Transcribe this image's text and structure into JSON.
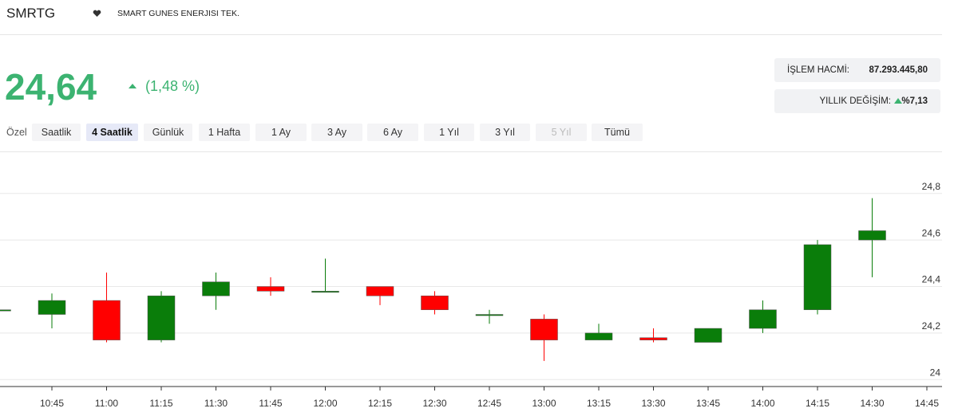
{
  "header": {
    "symbol": "SMRTG",
    "company": "SMART GUNES ENERJISI TEK."
  },
  "price": {
    "last": "24,64",
    "change": "(1,48 %)"
  },
  "stats": {
    "volume_label": "İŞLEM HACMİ:",
    "volume": "87.293.445,80",
    "yearly_label": "YILLIK DEĞİŞİM:",
    "yearly": "%7,13"
  },
  "periods": {
    "label": "Özel",
    "buttons": [
      "Saatlik",
      "4 Saatlik",
      "Günlük",
      "1 Hafta",
      "1 Ay",
      "3 Ay",
      "6 Ay",
      "1 Yıl",
      "3 Yıl",
      "5 Yıl",
      "Tümü"
    ],
    "active": "4 Saatlik",
    "disabled": "5 Yıl"
  },
  "chart_data": {
    "type": "candlestick",
    "categories": [
      null,
      "10:45",
      "11:00",
      "11:15",
      "11:30",
      "11:45",
      "12:00",
      "12:15",
      "12:30",
      "12:45",
      "13:00",
      "13:15",
      "13:30",
      "13:45",
      "14:00",
      "14:15",
      "14:30",
      "14:45"
    ],
    "open": [
      24.3,
      24.28,
      24.34,
      24.17,
      24.36,
      24.4,
      24.38,
      24.4,
      24.36,
      24.28,
      24.26,
      24.17,
      24.18,
      24.16,
      24.22,
      24.3,
      24.6,
      null
    ],
    "high": [
      24.3,
      24.37,
      24.46,
      24.38,
      24.46,
      24.44,
      24.52,
      24.4,
      24.38,
      24.3,
      24.28,
      24.24,
      24.22,
      24.22,
      24.34,
      24.6,
      24.78,
      null
    ],
    "low": [
      24.3,
      24.22,
      24.16,
      24.16,
      24.3,
      24.36,
      24.38,
      24.32,
      24.28,
      24.24,
      24.08,
      24.17,
      24.16,
      24.16,
      24.2,
      24.28,
      24.44,
      null
    ],
    "close": [
      24.3,
      24.34,
      24.17,
      24.36,
      24.42,
      24.38,
      24.38,
      24.36,
      24.3,
      24.28,
      24.17,
      24.2,
      24.17,
      24.22,
      24.3,
      24.58,
      24.64,
      null
    ],
    "up_color": "#0a7d0a",
    "down_color": "#ff0000",
    "ylim": [
      23.97,
      24.95
    ],
    "yticks": [
      24,
      {
        "value": 24.2,
        "label": "24,2"
      },
      {
        "value": 24.4,
        "label": "24,4"
      },
      {
        "value": 24.6,
        "label": "24,6"
      },
      {
        "value": 24.8,
        "label": "24,8"
      }
    ],
    "grid": true
  }
}
